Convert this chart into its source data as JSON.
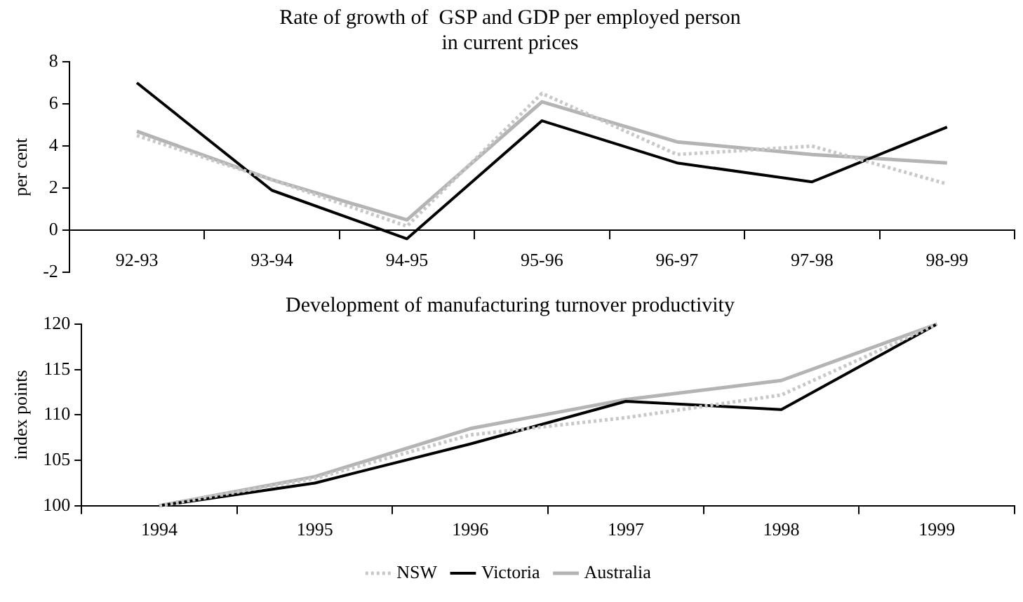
{
  "chart_data": [
    {
      "type": "line",
      "title": [
        "Rate of growth of  GSP and GDP per employed person",
        "in current prices"
      ],
      "ylabel": "per cent",
      "categories": [
        "92-93",
        "93-94",
        "94-95",
        "95-96",
        "96-97",
        "97-98",
        "98-99"
      ],
      "ylim": [
        -2,
        8
      ],
      "yticks": [
        -2,
        0,
        2,
        4,
        6,
        8
      ],
      "grid": false,
      "legend": false,
      "marker": "none",
      "series": [
        {
          "color": "#c8c8c8",
          "line_style": "dotted",
          "values": [
            4.5,
            2.4,
            0.2,
            6.5,
            3.6,
            4.0,
            2.2
          ]
        },
        {
          "color": "#000000",
          "line_style": "solid",
          "values": [
            7.0,
            1.9,
            -0.4,
            5.2,
            3.2,
            2.3,
            4.9
          ]
        },
        {
          "color": "#b4b4b4",
          "line_style": "solid",
          "values": [
            4.7,
            2.4,
            0.5,
            6.1,
            4.2,
            3.6,
            3.2
          ]
        }
      ]
    },
    {
      "type": "line",
      "title": "Development of manufacturing turnover productivity",
      "ylabel": "index points",
      "categories": [
        "1994",
        "1995",
        "1996",
        "1997",
        "1998",
        "1999"
      ],
      "ylim": [
        100,
        120
      ],
      "yticks": [
        100,
        105,
        110,
        115,
        120
      ],
      "grid": false,
      "legend": "bottom",
      "marker": "none",
      "series": [
        {
          "name": "NSW",
          "color": "#c8c8c8",
          "line_style": "dotted",
          "values": [
            100,
            103.0,
            107.8,
            109.7,
            112.2,
            120
          ]
        },
        {
          "name": "Victoria",
          "color": "#000000",
          "line_style": "solid",
          "values": [
            100,
            102.5,
            106.8,
            111.5,
            110.6,
            120
          ]
        },
        {
          "name": "Australia",
          "color": "#b4b4b4",
          "line_style": "solid",
          "values": [
            100,
            103.2,
            108.5,
            111.7,
            113.8,
            120
          ]
        }
      ]
    }
  ]
}
